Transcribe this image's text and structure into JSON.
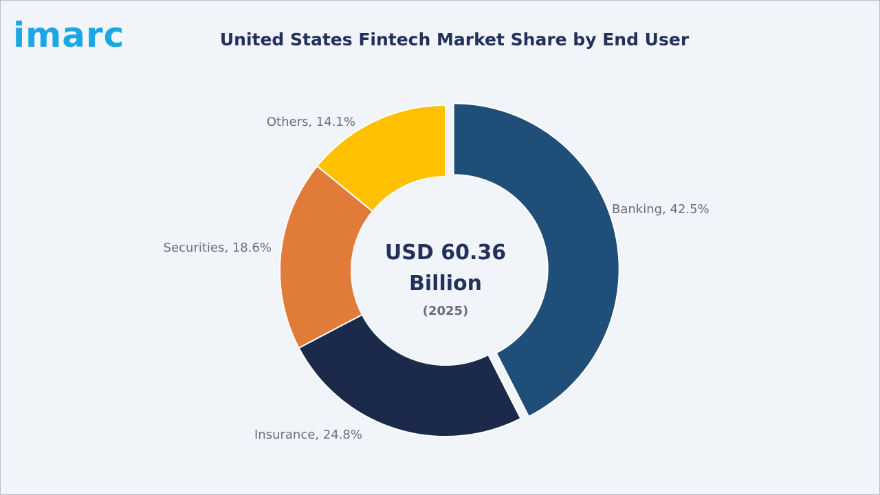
{
  "brand": {
    "logo_text": "imarc",
    "color": "#1aa7e4"
  },
  "chart_data": {
    "type": "pie",
    "variant": "donut",
    "title": "United States Fintech Market Share by End User",
    "center": {
      "value_line1": "USD 60.36",
      "value_line2": "Billion",
      "year": "(2025)"
    },
    "slices": [
      {
        "name": "Banking",
        "value": 42.5,
        "label": "Banking, 42.5%",
        "color": "#1f4e79",
        "exploded": true
      },
      {
        "name": "Insurance",
        "value": 24.8,
        "label": "Insurance, 24.8%",
        "color": "#1b2a4a",
        "exploded": false
      },
      {
        "name": "Securities",
        "value": 18.6,
        "label": "Securities, 18.6%",
        "color": "#e07b39",
        "exploded": false
      },
      {
        "name": "Others",
        "value": 14.1,
        "label": "Others, 14.1%",
        "color": "#ffc000",
        "exploded": false
      }
    ]
  }
}
